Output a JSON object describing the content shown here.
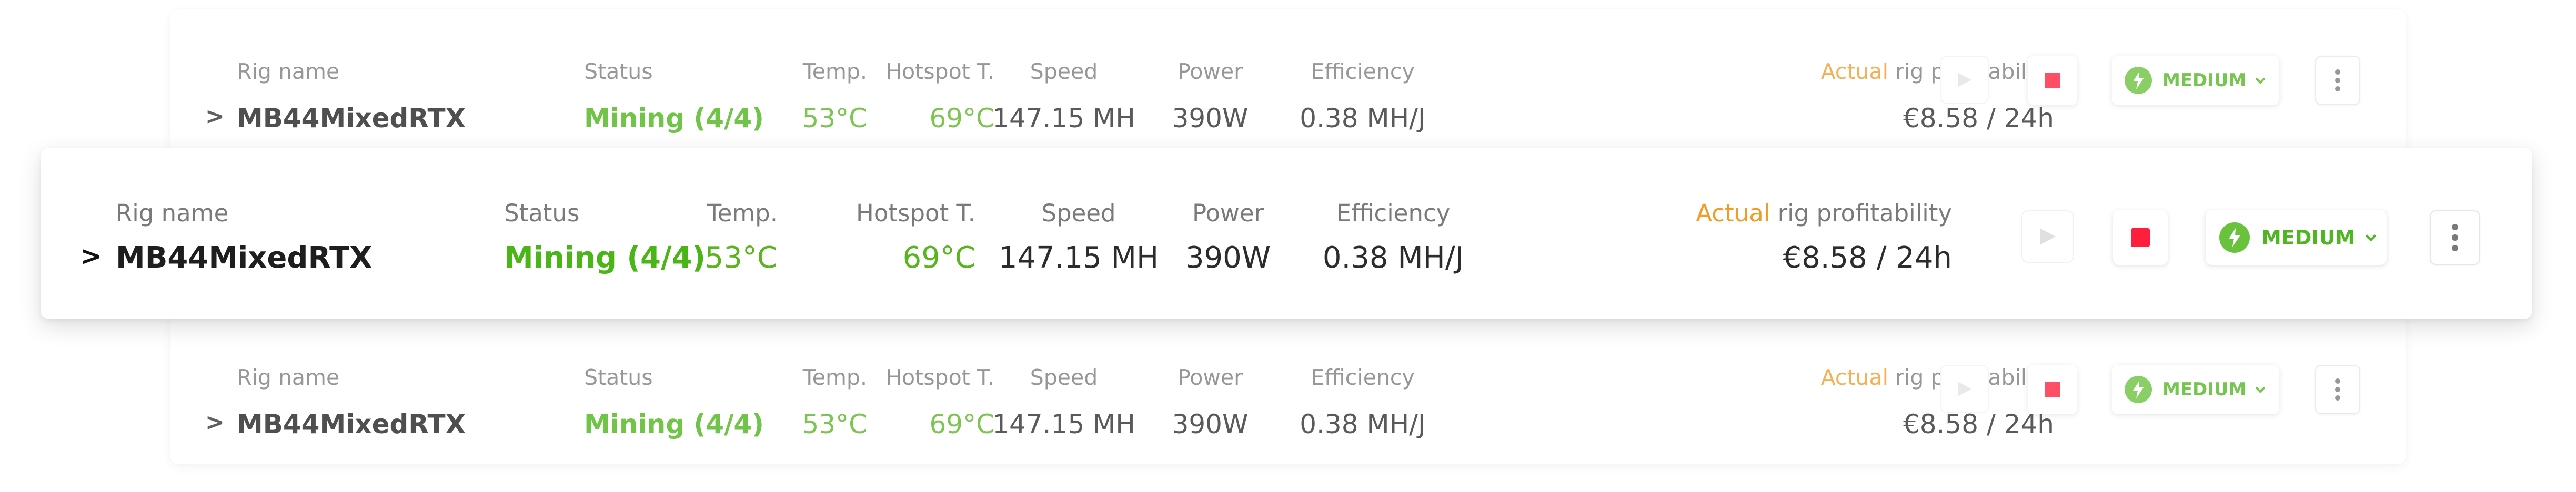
{
  "rigs": [
    {
      "labels": {
        "rig_name": "Rig name",
        "status": "Status",
        "temp": "Temp.",
        "hotspot": "Hotspot T.",
        "speed": "Speed",
        "power": "Power",
        "efficiency": "Efficiency",
        "profit_actual": "Actual",
        "profit_rest": " rig profitability"
      },
      "name": "MB44MixedRTX",
      "status": "Mining (4/4)",
      "temp": "53°C",
      "hotspot": "69°C",
      "speed": "147.15 MH",
      "power": "390W",
      "efficiency": "0.38 MH/J",
      "profitability": "€8.58 / 24h",
      "mode": "MEDIUM"
    },
    {
      "labels": {
        "rig_name": "Rig name",
        "status": "Status",
        "temp": "Temp.",
        "hotspot": "Hotspot T.",
        "speed": "Speed",
        "power": "Power",
        "efficiency": "Efficiency",
        "profit_actual": "Actual",
        "profit_rest": " rig profitability"
      },
      "name": "MB44MixedRTX",
      "status": "Mining (4/4)",
      "temp": "53°C",
      "hotspot": "69°C",
      "speed": "147.15 MH",
      "power": "390W",
      "efficiency": "0.38 MH/J",
      "profitability": "€8.58 / 24h",
      "mode": "MEDIUM"
    },
    {
      "labels": {
        "rig_name": "Rig name",
        "status": "Status",
        "temp": "Temp.",
        "hotspot": "Hotspot T.",
        "speed": "Speed",
        "power": "Power",
        "efficiency": "Efficiency",
        "profit_actual": "Actual",
        "profit_rest": " rig profitability"
      },
      "name": "MB44MixedRTX",
      "status": "Mining (4/4)",
      "temp": "53°C",
      "hotspot": "69°C",
      "speed": "147.15 MH",
      "power": "390W",
      "efficiency": "0.38 MH/J",
      "profitability": "€8.58 / 24h",
      "mode": "MEDIUM"
    }
  ],
  "icons": {
    "expand": "chevron-right-icon",
    "play": "play-icon",
    "stop": "stop-icon",
    "mode": "lightning-icon",
    "dropdown": "chevron-down-icon",
    "more": "more-vertical-icon"
  },
  "colors": {
    "status_green": "#49b516",
    "value_green": "#58b520",
    "actual_orange": "#f29b25",
    "stop_red": "#ff1e3c",
    "mode_green": "#4fb520"
  }
}
